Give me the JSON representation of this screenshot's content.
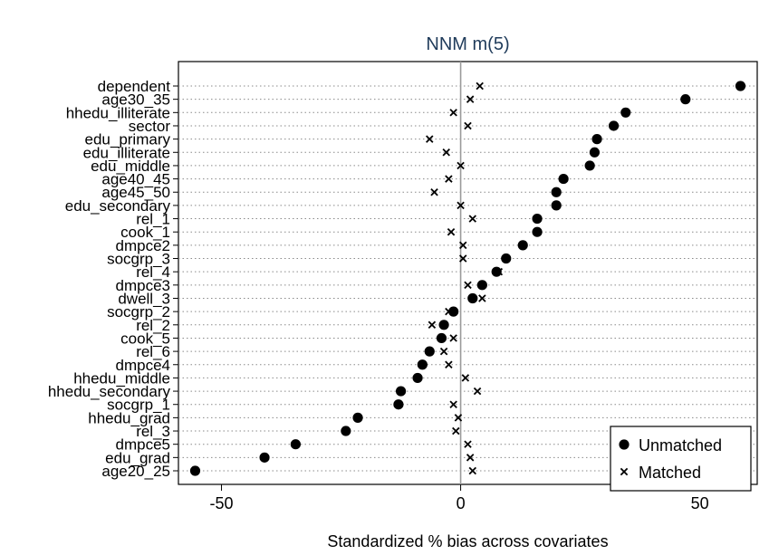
{
  "chart_data": {
    "type": "scatter",
    "title": "NNM m(5)",
    "xlabel": "Standardized % bias across covariates",
    "ylabel": "",
    "xlim": [
      -59,
      62
    ],
    "xticks": [
      -50,
      0,
      50
    ],
    "reference_line_x": 0,
    "grid": "horizontal dotted lines at each covariate",
    "legend_position": "bottom-right",
    "categories": [
      "dependent",
      "age30_35",
      "hhedu_illiterate",
      "sector",
      "edu_primary",
      "edu_illiterate",
      "edu_middle",
      "age40_45",
      "age45_50",
      "edu_secondary",
      "rel_1",
      "cook_1",
      "dmpce2",
      "socgrp_3",
      "rel_4",
      "dmpce3",
      "dwell_3",
      "socgrp_2",
      "rel_2",
      "cook_5",
      "rel_6",
      "dmpce4",
      "hhedu_middle",
      "hhedu_secondary",
      "socgrp_1",
      "hhedu_grad",
      "rel_3",
      "dmpce5",
      "edu_grad",
      "age20_25"
    ],
    "series": [
      {
        "name": "Unmatched",
        "marker": "filled-circle",
        "color": "#000000",
        "values": [
          58.5,
          47,
          34.5,
          32,
          28.5,
          28,
          27,
          21.5,
          20,
          20,
          16,
          16,
          13,
          9.5,
          7.5,
          4.5,
          2.5,
          -1.5,
          -3.5,
          -4,
          -6.5,
          -8,
          -9,
          -12.5,
          -13,
          -21.5,
          -24,
          -34.5,
          -41,
          -55.5
        ]
      },
      {
        "name": "Matched",
        "marker": "x",
        "color": "#000000",
        "values": [
          4,
          2,
          -1.5,
          1.5,
          -6.5,
          -3,
          0,
          -2.5,
          -5.5,
          0,
          2.5,
          -2,
          0.5,
          0.5,
          8,
          1.5,
          4.5,
          -2.5,
          -6,
          -1.5,
          -3.5,
          -2.5,
          1,
          3.5,
          -1.5,
          -0.5,
          -1,
          1.5,
          2,
          2.5
        ]
      }
    ]
  }
}
